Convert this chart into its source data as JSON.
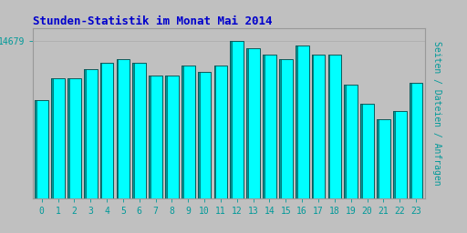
{
  "title": "Stunden-Statistik im Monat Mai 2014",
  "ylabel": "Seiten / Dateien / Anfragen",
  "ytick_label": "14679",
  "categories": [
    0,
    1,
    2,
    3,
    4,
    5,
    6,
    7,
    8,
    9,
    10,
    11,
    12,
    13,
    14,
    15,
    16,
    17,
    18,
    19,
    20,
    21,
    22,
    23
  ],
  "values": [
    0.62,
    0.76,
    0.76,
    0.82,
    0.86,
    0.88,
    0.86,
    0.78,
    0.78,
    0.84,
    0.8,
    0.84,
    1.0,
    0.95,
    0.91,
    0.88,
    0.97,
    0.91,
    0.91,
    0.72,
    0.6,
    0.5,
    0.55,
    0.73
  ],
  "bar_face_color": "#00FFFF",
  "bar_edge_color": "#004444",
  "bar_shadow_color": "#009999",
  "background_color": "#C0C0C0",
  "plot_bg_color": "#C0C0C0",
  "title_color": "#0000CC",
  "ylabel_color": "#009999",
  "tick_color": "#009999",
  "title_fontsize": 9,
  "ylabel_fontsize": 7,
  "tick_fontsize": 7,
  "ylim_min": 0.0,
  "ylim_max": 1.08
}
